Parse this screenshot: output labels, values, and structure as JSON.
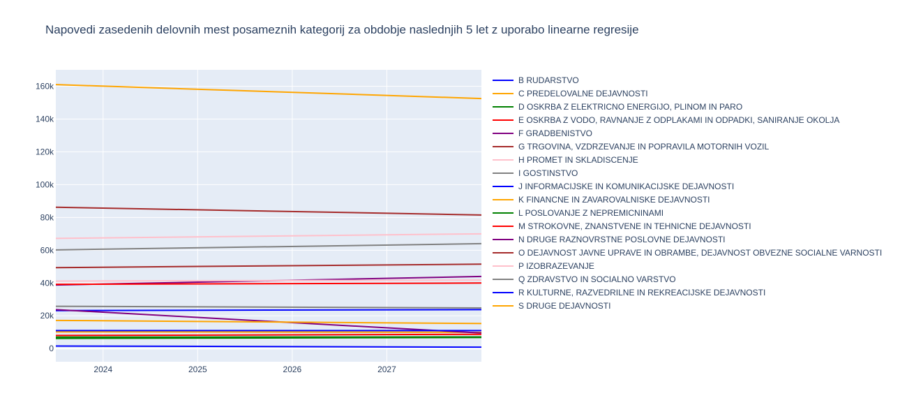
{
  "chart_data": {
    "type": "line",
    "title": "Napovedi zasedenih delovnih mest posameznih kategorij za obdobje naslednjih 5 let z uporabo linearne regresije",
    "xlabel": "",
    "ylabel": "",
    "x": [
      2023.5,
      2028.0
    ],
    "xlim": [
      2023.5,
      2028.0
    ],
    "ylim": [
      -8000,
      170000
    ],
    "x_ticks": [
      2024,
      2025,
      2026,
      2027
    ],
    "x_tick_labels": [
      "2024",
      "2025",
      "2026",
      "2027"
    ],
    "y_ticks": [
      0,
      20000,
      40000,
      60000,
      80000,
      100000,
      120000,
      140000,
      160000
    ],
    "y_tick_labels": [
      "0",
      "20k",
      "40k",
      "60k",
      "80k",
      "100k",
      "120k",
      "140k",
      "160k"
    ],
    "grid": true,
    "plot_background": "#e5ecf6",
    "legend_position": "right",
    "series": [
      {
        "name": "B RUDARSTVO",
        "color": "#0000ff",
        "values": [
          1600,
          900
        ]
      },
      {
        "name": "C PREDELOVALNE DEJAVNOSTI",
        "color": "#ffa500",
        "values": [
          161000,
          152500
        ]
      },
      {
        "name": "D OSKRBA Z ELEKTRICNO ENERGIJO, PLINOM IN PARO",
        "color": "#008000",
        "values": [
          6200,
          6800
        ]
      },
      {
        "name": "E OSKRBA Z VODO, RAVNANJE Z ODPLAKAMI IN ODPADKI, SANIRANJE OKOLJA",
        "color": "#ff0000",
        "values": [
          8000,
          8700
        ]
      },
      {
        "name": "F GRADBENISTVO",
        "color": "#800080",
        "values": [
          38800,
          44000
        ]
      },
      {
        "name": "G TRGOVINA, VZDRZEVANJE IN POPRAVILA MOTORNIH VOZIL",
        "color": "#a52a2a",
        "values": [
          86200,
          81500
        ]
      },
      {
        "name": "H PROMET IN SKLADISCENJE",
        "color": "#ffc0cb",
        "values": [
          67200,
          70000
        ]
      },
      {
        "name": "I GOSTINSTVO",
        "color": "#808080",
        "values": [
          60200,
          64000
        ]
      },
      {
        "name": "J INFORMACIJSKE IN KOMUNIKACIJSKE DEJAVNOSTI",
        "color": "#0000ff",
        "values": [
          23200,
          23800
        ]
      },
      {
        "name": "K FINANCNE IN ZAVAROVALNISKE DEJAVNOSTI",
        "color": "#ffa500",
        "values": [
          10200,
          10000
        ]
      },
      {
        "name": "L POSLOVANJE Z NEPREMICNINAMI",
        "color": "#008000",
        "values": [
          7000,
          7100
        ]
      },
      {
        "name": "M STROKOVNE, ZNANSTVENE IN TEHNICNE DEJAVNOSTI",
        "color": "#ff0000",
        "values": [
          39200,
          40000
        ]
      },
      {
        "name": "N DRUGE RAZNOVRSTNE POSLOVNE DEJAVNOSTI",
        "color": "#800080",
        "values": [
          23800,
          9500
        ]
      },
      {
        "name": "O DEJAVNOST JAVNE UPRAVE IN OBRAMBE, DEJAVNOST OBVEZNE SOCIALNE VARNOSTI",
        "color": "#a52a2a",
        "values": [
          49400,
          51500
        ]
      },
      {
        "name": "P IZOBRAZEVANJE",
        "color": "#ffc0cb",
        "values": [
          41200,
          41800
        ]
      },
      {
        "name": "Q ZDRAVSTVO IN SOCIALNO VARSTVO",
        "color": "#808080",
        "values": [
          25800,
          24800
        ]
      },
      {
        "name": "R KULTURNE, RAZVEDRILNE IN REKREACIJSKE DEJAVNOSTI",
        "color": "#0000ff",
        "values": [
          11000,
          11000
        ]
      },
      {
        "name": "S DRUGE DEJAVNOSTI",
        "color": "#ffa500",
        "values": [
          17200,
          15300
        ]
      }
    ]
  }
}
